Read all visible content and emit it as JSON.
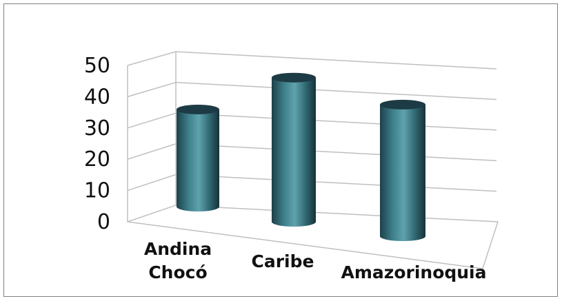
{
  "chart_data": {
    "type": "bar",
    "style": "3d-cylinder",
    "categories": [
      "Andina Chocó",
      "Caribe",
      "Amazorinoquia"
    ],
    "category_lines": [
      [
        "Andina",
        "Chocó"
      ],
      [
        "Caribe"
      ],
      [
        "Amazorinoquia"
      ]
    ],
    "values": [
      31,
      46,
      42
    ],
    "ylim": [
      0,
      50
    ],
    "yticks": [
      "0",
      "10",
      "20",
      "30",
      "40",
      "50"
    ],
    "grid": true,
    "legend": "none",
    "colors": {
      "bar": "#3e7f8b",
      "bar_dark": "#1d3b44",
      "grid": "#bfbfbf",
      "frame": "#7f7f7f"
    }
  }
}
